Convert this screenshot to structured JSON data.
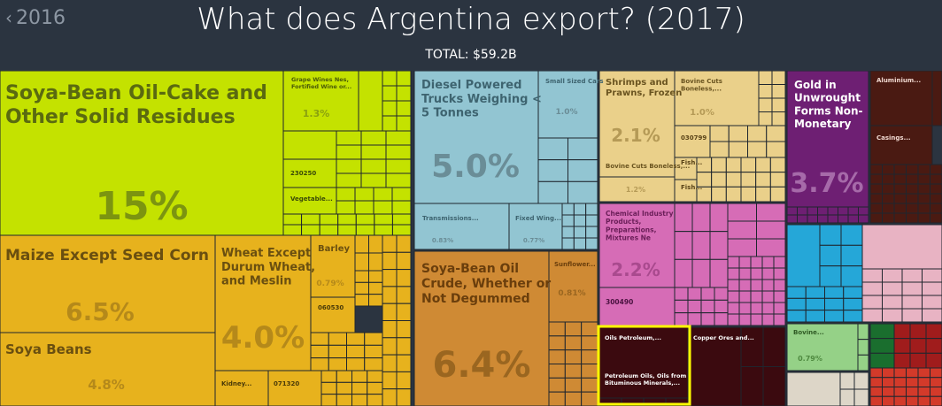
{
  "header": {
    "back_label": "2016",
    "title": "What does Argentina export? (2017)",
    "total": "TOTAL: $59.2B"
  },
  "colors": {
    "background": "#2b3440",
    "vegetable_products": "#c4e200",
    "cereals": "#e7b21d",
    "transport": "#92c5d2",
    "food_oils": "#cf8a34",
    "animal_products": "#ead08a",
    "chemicals": "#d66cb6",
    "precious_metals": "#6e1f73",
    "mineral_products": "#3b0a0f",
    "highlight": "#ffff00"
  },
  "chart_data": {
    "type": "treemap",
    "title": "What does Argentina export? (2017)",
    "total": "TOTAL: $59.2B",
    "labeled_items": [
      {
        "name": "Soya-Bean Oil-Cake and Other Solid Residues",
        "share": "15%"
      },
      {
        "name": "Maize Except Seed Corn",
        "share": "6.5%"
      },
      {
        "name": "Soya Beans",
        "share": "4.8%"
      },
      {
        "name": "Wheat Except Durum Wheat, and Meslin",
        "share": "4.0%"
      },
      {
        "name": "Barley",
        "share": "0.79%"
      },
      {
        "name": "060530",
        "share": ""
      },
      {
        "name": "Kidney...",
        "share": ""
      },
      {
        "name": "071320",
        "share": ""
      },
      {
        "name": "Grape Wines Nes, Fortified Wine or...",
        "share": "1.3%"
      },
      {
        "name": "230250",
        "share": ""
      },
      {
        "name": "Vegetable...",
        "share": ""
      },
      {
        "name": "Diesel Powered Trucks Weighing < 5 Tonnes",
        "share": "5.0%"
      },
      {
        "name": "Small Sized Cars",
        "share": "1.0%"
      },
      {
        "name": "Transmissions...",
        "share": "0.83%"
      },
      {
        "name": "Fixed Wing...",
        "share": "0.77%"
      },
      {
        "name": "Soya-Bean Oil Crude, Whether or Not Degummed",
        "share": "6.4%"
      },
      {
        "name": "Sunflower...",
        "share": "0.81%"
      },
      {
        "name": "Shrimps and Prawns, Frozen",
        "share": "2.1%"
      },
      {
        "name": "Bovine Cuts Boneless,...",
        "share": "1.0%"
      },
      {
        "name": "030799",
        "share": ""
      },
      {
        "name": "Bovine Cuts Boneless,...",
        "share": "1.2%"
      },
      {
        "name": "Fish...",
        "share": ""
      },
      {
        "name": "Fish...",
        "share": ""
      },
      {
        "name": "Chemical Industry Products, Preparations, Mixtures Ne",
        "share": "2.2%"
      },
      {
        "name": "300490",
        "share": ""
      },
      {
        "name": "Gold in Unwrought Forms Non-Monetary",
        "share": "3.7%"
      },
      {
        "name": "Aluminium...",
        "share": ""
      },
      {
        "name": "Casings...",
        "share": ""
      },
      {
        "name": "Oils Petroleum,...",
        "share": ""
      },
      {
        "name": "Petroleum Oils, Oils from Bituminous Minerals,...",
        "share": ""
      },
      {
        "name": "Copper Ores and...",
        "share": ""
      },
      {
        "name": "Bovine...",
        "share": "0.79%"
      }
    ]
  }
}
